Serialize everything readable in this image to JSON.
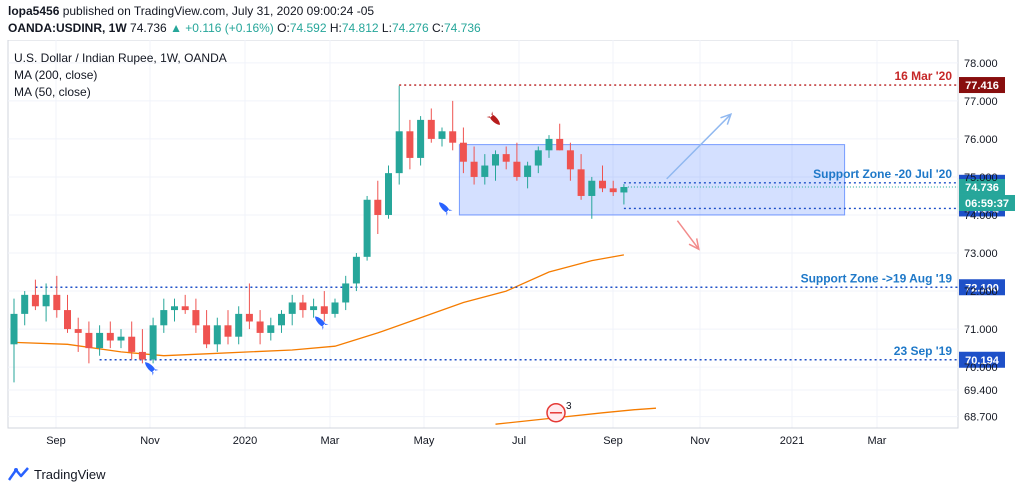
{
  "header": {
    "publisher": "lopa5456",
    "published_text": " published on TradingView.com, July 31, 2020 09:00:24 -05",
    "symbol": "OANDA:USDINR, 1W",
    "last": "74.736",
    "change": "+0.116 (+0.16%)",
    "o_label": "O:",
    "o": "74.592",
    "h_label": "H:",
    "h": "74.812",
    "l_label": "L:",
    "l": "74.276",
    "c_label": "C:",
    "c": "74.736"
  },
  "legend": {
    "title": "U.S. Dollar / Indian Rupee, 1W, OANDA",
    "ma200": "MA (200, close)",
    "ma50": "MA (50, close)"
  },
  "footer": {
    "brand": "TradingView"
  },
  "colors": {
    "up": "#26a69a",
    "down": "#ef5350",
    "ma": "#f57c00",
    "level": "#1e50c8",
    "zone": "#2962ff",
    "peak": "#880e0e"
  },
  "chart_data": {
    "type": "candlestick",
    "title": "U.S. Dollar / Indian Rupee, 1W, OANDA",
    "ylim": [
      68.4,
      78.6
    ],
    "y_ticks": [
      68.7,
      69.4,
      70.0,
      71.0,
      72.0,
      73.0,
      74.0,
      75.0,
      76.0,
      77.0,
      78.0
    ],
    "y_tick_labels": [
      "68.700",
      "69.400",
      "70.000",
      "71.000",
      "72.000",
      "73.000",
      "74.000",
      "75.000",
      "76.000",
      "77.000",
      "78.000"
    ],
    "x_labels": [
      "Sep",
      "Nov",
      "2020",
      "Mar",
      "May",
      "Jul",
      "Sep",
      "Nov",
      "2021",
      "Mar"
    ],
    "candles": [
      [
        70.6,
        71.8,
        69.6,
        71.4
      ],
      [
        71.4,
        72.0,
        71.1,
        71.9
      ],
      [
        71.9,
        72.3,
        71.5,
        71.6
      ],
      [
        71.6,
        72.2,
        71.2,
        71.9
      ],
      [
        71.9,
        72.4,
        71.3,
        71.5
      ],
      [
        71.5,
        71.9,
        70.9,
        71.0
      ],
      [
        71.0,
        71.3,
        70.4,
        70.9
      ],
      [
        70.9,
        71.2,
        70.1,
        70.5
      ],
      [
        70.5,
        71.1,
        70.3,
        70.9
      ],
      [
        70.9,
        71.2,
        70.5,
        70.7
      ],
      [
        70.7,
        71.0,
        70.5,
        70.8
      ],
      [
        70.8,
        71.2,
        70.2,
        70.4
      ],
      [
        70.4,
        71.0,
        70.1,
        70.2
      ],
      [
        70.2,
        71.3,
        70.1,
        71.1
      ],
      [
        71.1,
        71.8,
        70.9,
        71.5
      ],
      [
        71.5,
        71.8,
        71.2,
        71.6
      ],
      [
        71.6,
        71.9,
        71.4,
        71.5
      ],
      [
        71.5,
        71.8,
        70.9,
        71.1
      ],
      [
        71.1,
        71.5,
        70.5,
        70.6
      ],
      [
        70.6,
        71.3,
        70.4,
        71.1
      ],
      [
        71.1,
        71.5,
        70.6,
        70.8
      ],
      [
        70.8,
        71.6,
        70.6,
        71.4
      ],
      [
        71.4,
        72.2,
        71.0,
        71.2
      ],
      [
        71.2,
        71.5,
        70.6,
        70.9
      ],
      [
        70.9,
        71.3,
        70.7,
        71.1
      ],
      [
        71.1,
        71.5,
        70.9,
        71.4
      ],
      [
        71.4,
        71.9,
        71.1,
        71.7
      ],
      [
        71.7,
        71.9,
        71.3,
        71.5
      ],
      [
        71.5,
        71.8,
        71.3,
        71.6
      ],
      [
        71.6,
        72.0,
        71.2,
        71.4
      ],
      [
        71.4,
        71.8,
        71.3,
        71.7
      ],
      [
        71.7,
        72.4,
        71.5,
        72.2
      ],
      [
        72.2,
        73.0,
        72.0,
        72.9
      ],
      [
        72.9,
        74.5,
        72.8,
        74.4
      ],
      [
        74.4,
        74.9,
        73.5,
        74.0
      ],
      [
        74.0,
        75.3,
        73.9,
        75.1
      ],
      [
        75.1,
        77.4,
        74.8,
        76.2
      ],
      [
        76.2,
        76.5,
        75.2,
        75.5
      ],
      [
        75.5,
        76.6,
        75.3,
        76.5
      ],
      [
        76.5,
        76.8,
        75.9,
        76.0
      ],
      [
        76.0,
        76.3,
        75.8,
        76.2
      ],
      [
        76.2,
        77.0,
        75.7,
        75.9
      ],
      [
        75.9,
        76.3,
        75.1,
        75.4
      ],
      [
        75.4,
        75.8,
        74.8,
        75.0
      ],
      [
        75.0,
        75.6,
        74.8,
        75.3
      ],
      [
        75.3,
        75.7,
        74.9,
        75.6
      ],
      [
        75.6,
        75.8,
        75.2,
        75.4
      ],
      [
        75.4,
        75.9,
        74.9,
        75.0
      ],
      [
        75.0,
        75.4,
        74.7,
        75.3
      ],
      [
        75.3,
        75.8,
        75.1,
        75.7
      ],
      [
        75.7,
        76.1,
        75.5,
        76.0
      ],
      [
        76.0,
        76.4,
        75.7,
        75.7
      ],
      [
        75.7,
        75.9,
        74.9,
        75.2
      ],
      [
        75.2,
        75.6,
        74.4,
        74.5
      ],
      [
        74.5,
        75.0,
        73.9,
        74.9
      ],
      [
        74.9,
        75.3,
        74.6,
        74.7
      ],
      [
        74.7,
        74.9,
        74.5,
        74.6
      ],
      [
        74.592,
        74.812,
        74.276,
        74.736
      ]
    ],
    "ma50": [
      [
        0,
        70.65
      ],
      [
        5,
        70.6
      ],
      [
        10,
        70.4
      ],
      [
        14,
        70.3
      ],
      [
        18,
        70.35
      ],
      [
        22,
        70.4
      ],
      [
        26,
        70.45
      ],
      [
        30,
        70.55
      ],
      [
        34,
        70.9
      ],
      [
        38,
        71.3
      ],
      [
        42,
        71.7
      ],
      [
        46,
        72.0
      ],
      [
        50,
        72.5
      ],
      [
        54,
        72.8
      ],
      [
        57,
        72.95
      ]
    ],
    "ma200": [
      [
        45,
        68.5
      ],
      [
        50,
        68.65
      ],
      [
        55,
        68.8
      ],
      [
        58,
        68.88
      ],
      [
        60,
        68.92
      ]
    ],
    "levels": [
      {
        "label": "16 Mar '20",
        "value": 77.416,
        "value_text": "77.416",
        "from": 36
      },
      {
        "label": "Support Zone -20 Jul '20",
        "value": 74.846,
        "value_text": "74.846",
        "from": 57
      },
      {
        "label": "",
        "value": 74.172,
        "value_text": "74.172",
        "from": 57
      },
      {
        "label": "Support Zone ->19 Aug '19",
        "value": 72.1,
        "value_text": "72.100",
        "from": 2
      },
      {
        "label": "23 Sep '19",
        "value": 70.194,
        "value_text": "70.194",
        "from": 8
      }
    ],
    "last_price": {
      "value": 74.736,
      "value_text": "74.736",
      "countdown": "06:59:37"
    },
    "zone": {
      "from": 42,
      "to": 78,
      "top": 75.85,
      "bottom": 74.0
    },
    "arrow_up": {
      "from": [
        61,
        74.95
      ],
      "to": [
        67,
        76.65
      ]
    },
    "arrow_down": {
      "from": [
        62,
        73.85
      ],
      "to": [
        64,
        73.1
      ]
    },
    "events_count": "3"
  }
}
